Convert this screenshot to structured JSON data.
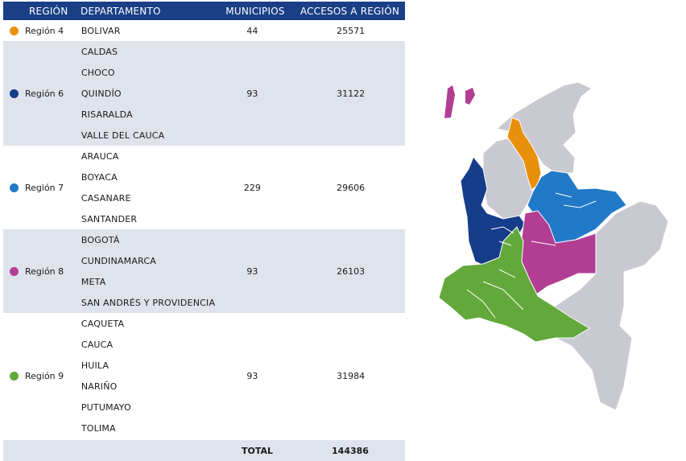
{
  "header": {
    "region": "REGIÓN",
    "department": "DEPARTAMENTO",
    "municipalities": "MUNICIPIOS",
    "accesses": "ACCESOS A REGIÓN"
  },
  "colors": {
    "header_bg": "#1a3f86",
    "row_shade": "#dfe3ec",
    "region4": "#e8900c",
    "region6": "#163d8a",
    "region7": "#2179c8",
    "region8": "#b23e93",
    "region9": "#62a83b",
    "other": "#c9c9d1"
  },
  "regions": [
    {
      "name": "Región 4",
      "departments": [
        "BOLIVAR"
      ],
      "municipalities": "44",
      "accesses": "25571"
    },
    {
      "name": "Región 6",
      "departments": [
        "CALDAS",
        "CHOCO",
        "QUINDÍO",
        "RISARALDA",
        "VALLE DEL CAUCA"
      ],
      "municipalities": "93",
      "accesses": "31122"
    },
    {
      "name": "Región 7",
      "departments": [
        "ARAUCA",
        "BOYACA",
        "CASANARE",
        "SANTANDER"
      ],
      "municipalities": "229",
      "accesses": "29606"
    },
    {
      "name": "Región 8",
      "departments": [
        "BOGOTÁ",
        "CUNDINAMARCA",
        "META",
        "SAN ANDRÉS Y PROVIDENCIA"
      ],
      "municipalities": "93",
      "accesses": "26103"
    },
    {
      "name": "Región 9",
      "departments": [
        "CAQUETA",
        "CAUCA",
        "HUILA",
        "NARIÑO",
        "PUTUMAYO",
        "TOLIMA"
      ],
      "municipalities": "93",
      "accesses": "31984"
    }
  ],
  "total": {
    "label": "TOTAL",
    "value": "144386"
  }
}
